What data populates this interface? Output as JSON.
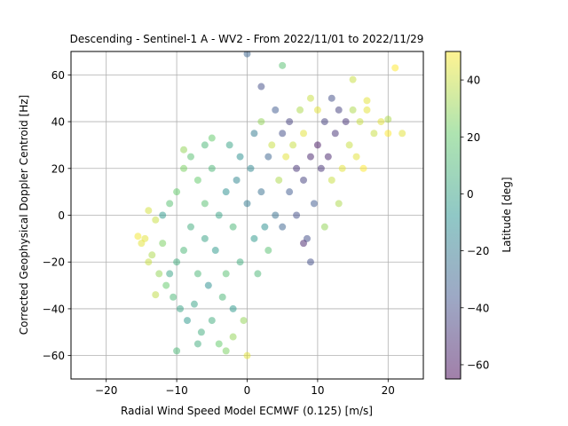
{
  "chart_data": {
    "type": "scatter",
    "title": "Descending - Sentinel-1 A - WV2 - From 2022/11/01 to 2022/11/29",
    "xlabel": "Radial Wind Speed Model ECMWF (0.125) [m/s]",
    "ylabel": "Corrected Geophysical Doppler Centroid [Hz]",
    "xlim": [
      -25,
      25
    ],
    "ylim": [
      -70,
      70
    ],
    "xticks": [
      -20,
      -10,
      0,
      10,
      20
    ],
    "yticks": [
      -60,
      -40,
      -20,
      0,
      20,
      40,
      60
    ],
    "xtick_labels": [
      "−20",
      "−10",
      "0",
      "10",
      "20"
    ],
    "ytick_labels": [
      "−60",
      "−40",
      "−20",
      "0",
      "20",
      "40",
      "60"
    ],
    "grid": true,
    "colormap": "viridis",
    "marker_alpha": 0.5,
    "colorbar": {
      "label": "Latitude [deg]",
      "range": [
        -65,
        50
      ],
      "ticks": [
        -60,
        -40,
        -20,
        0,
        20,
        40
      ],
      "tick_labels": [
        "−60",
        "−40",
        "−20",
        "0",
        "20",
        "40"
      ]
    },
    "series": [
      {
        "points": [
          [
            -14.5,
            -10,
            45
          ],
          [
            -14,
            -20,
            40
          ],
          [
            -13.5,
            -17,
            35
          ],
          [
            -13,
            -2,
            40
          ],
          [
            -12.5,
            -25,
            30
          ],
          [
            -12,
            -12,
            25
          ],
          [
            -11.5,
            -30,
            20
          ],
          [
            -11,
            5,
            15
          ],
          [
            -10.5,
            -35,
            10
          ],
          [
            -10,
            -20,
            5
          ],
          [
            -10,
            10,
            20
          ],
          [
            -9.5,
            -40,
            0
          ],
          [
            -9,
            -15,
            10
          ],
          [
            -9,
            20,
            25
          ],
          [
            -8.5,
            -45,
            -5
          ],
          [
            -8,
            -5,
            5
          ],
          [
            -8,
            25,
            15
          ],
          [
            -7.5,
            -38,
            0
          ],
          [
            -7,
            -25,
            10
          ],
          [
            -7,
            15,
            20
          ],
          [
            -6.5,
            -50,
            5
          ],
          [
            -6,
            -10,
            0
          ],
          [
            -6,
            5,
            15
          ],
          [
            -5.5,
            -30,
            -10
          ],
          [
            -5,
            -45,
            5
          ],
          [
            -5,
            20,
            10
          ],
          [
            -4.5,
            -15,
            -5
          ],
          [
            -4,
            -55,
            20
          ],
          [
            -4,
            0,
            0
          ],
          [
            -3.5,
            -35,
            10
          ],
          [
            -3,
            10,
            -10
          ],
          [
            -3,
            -25,
            15
          ],
          [
            -2.5,
            30,
            0
          ],
          [
            -2,
            -40,
            -5
          ],
          [
            -2,
            -5,
            10
          ],
          [
            -1.5,
            15,
            -15
          ],
          [
            -1,
            -20,
            5
          ],
          [
            -1,
            25,
            -10
          ],
          [
            -0.5,
            -45,
            30
          ],
          [
            0,
            5,
            -20
          ],
          [
            0,
            -60,
            45
          ],
          [
            0.5,
            20,
            -15
          ],
          [
            1,
            -10,
            -5
          ],
          [
            1,
            35,
            -20
          ],
          [
            1.5,
            -25,
            10
          ],
          [
            2,
            10,
            -25
          ],
          [
            2,
            40,
            30
          ],
          [
            2.5,
            -5,
            -10
          ],
          [
            3,
            25,
            -30
          ],
          [
            3,
            -15,
            15
          ],
          [
            3.5,
            30,
            40
          ],
          [
            4,
            0,
            -25
          ],
          [
            4,
            45,
            -35
          ],
          [
            4.5,
            15,
            35
          ],
          [
            5,
            -5,
            -30
          ],
          [
            5,
            35,
            -40
          ],
          [
            5.5,
            25,
            45
          ],
          [
            6,
            10,
            -35
          ],
          [
            6,
            40,
            -45
          ],
          [
            6.5,
            30,
            40
          ],
          [
            7,
            0,
            -40
          ],
          [
            7,
            20,
            -50
          ],
          [
            7.5,
            45,
            35
          ],
          [
            8,
            15,
            -45
          ],
          [
            8,
            35,
            45
          ],
          [
            8.5,
            -10,
            -40
          ],
          [
            9,
            25,
            -55
          ],
          [
            9,
            50,
            40
          ],
          [
            9.5,
            5,
            -35
          ],
          [
            10,
            30,
            -60
          ],
          [
            10,
            45,
            45
          ],
          [
            10.5,
            20,
            -50
          ],
          [
            11,
            40,
            -45
          ],
          [
            11,
            -5,
            30
          ],
          [
            11.5,
            25,
            -55
          ],
          [
            12,
            50,
            -40
          ],
          [
            12,
            15,
            40
          ],
          [
            12.5,
            35,
            -50
          ],
          [
            13,
            5,
            35
          ],
          [
            13,
            45,
            -45
          ],
          [
            13.5,
            20,
            45
          ],
          [
            14,
            40,
            -50
          ],
          [
            14.5,
            30,
            40
          ],
          [
            15,
            45,
            35
          ],
          [
            15.5,
            25,
            45
          ],
          [
            16,
            40,
            40
          ],
          [
            16.5,
            20,
            50
          ],
          [
            17,
            45,
            45
          ],
          [
            18,
            35,
            40
          ],
          [
            19,
            40,
            45
          ],
          [
            20,
            35,
            50
          ],
          [
            21,
            63,
            50
          ],
          [
            22,
            35,
            45
          ],
          [
            -12,
            0,
            -5
          ],
          [
            -11,
            -25,
            0
          ],
          [
            -6,
            30,
            10
          ],
          [
            2,
            55,
            -40
          ],
          [
            0,
            69,
            -30
          ],
          [
            5,
            64,
            15
          ],
          [
            -10,
            -58,
            10
          ],
          [
            -7,
            -55,
            5
          ],
          [
            -2,
            -52,
            30
          ],
          [
            9,
            -20,
            -40
          ],
          [
            8,
            -12,
            -55
          ],
          [
            -15,
            -12,
            45
          ],
          [
            -15.5,
            -9,
            48
          ],
          [
            -14,
            2,
            42
          ],
          [
            -13,
            -34,
            38
          ],
          [
            -3,
            -58,
            25
          ],
          [
            15,
            58,
            40
          ],
          [
            17,
            49,
            45
          ],
          [
            20,
            41,
            35
          ],
          [
            -9,
            28,
            30
          ],
          [
            -5,
            33,
            20
          ]
        ]
      }
    ]
  }
}
